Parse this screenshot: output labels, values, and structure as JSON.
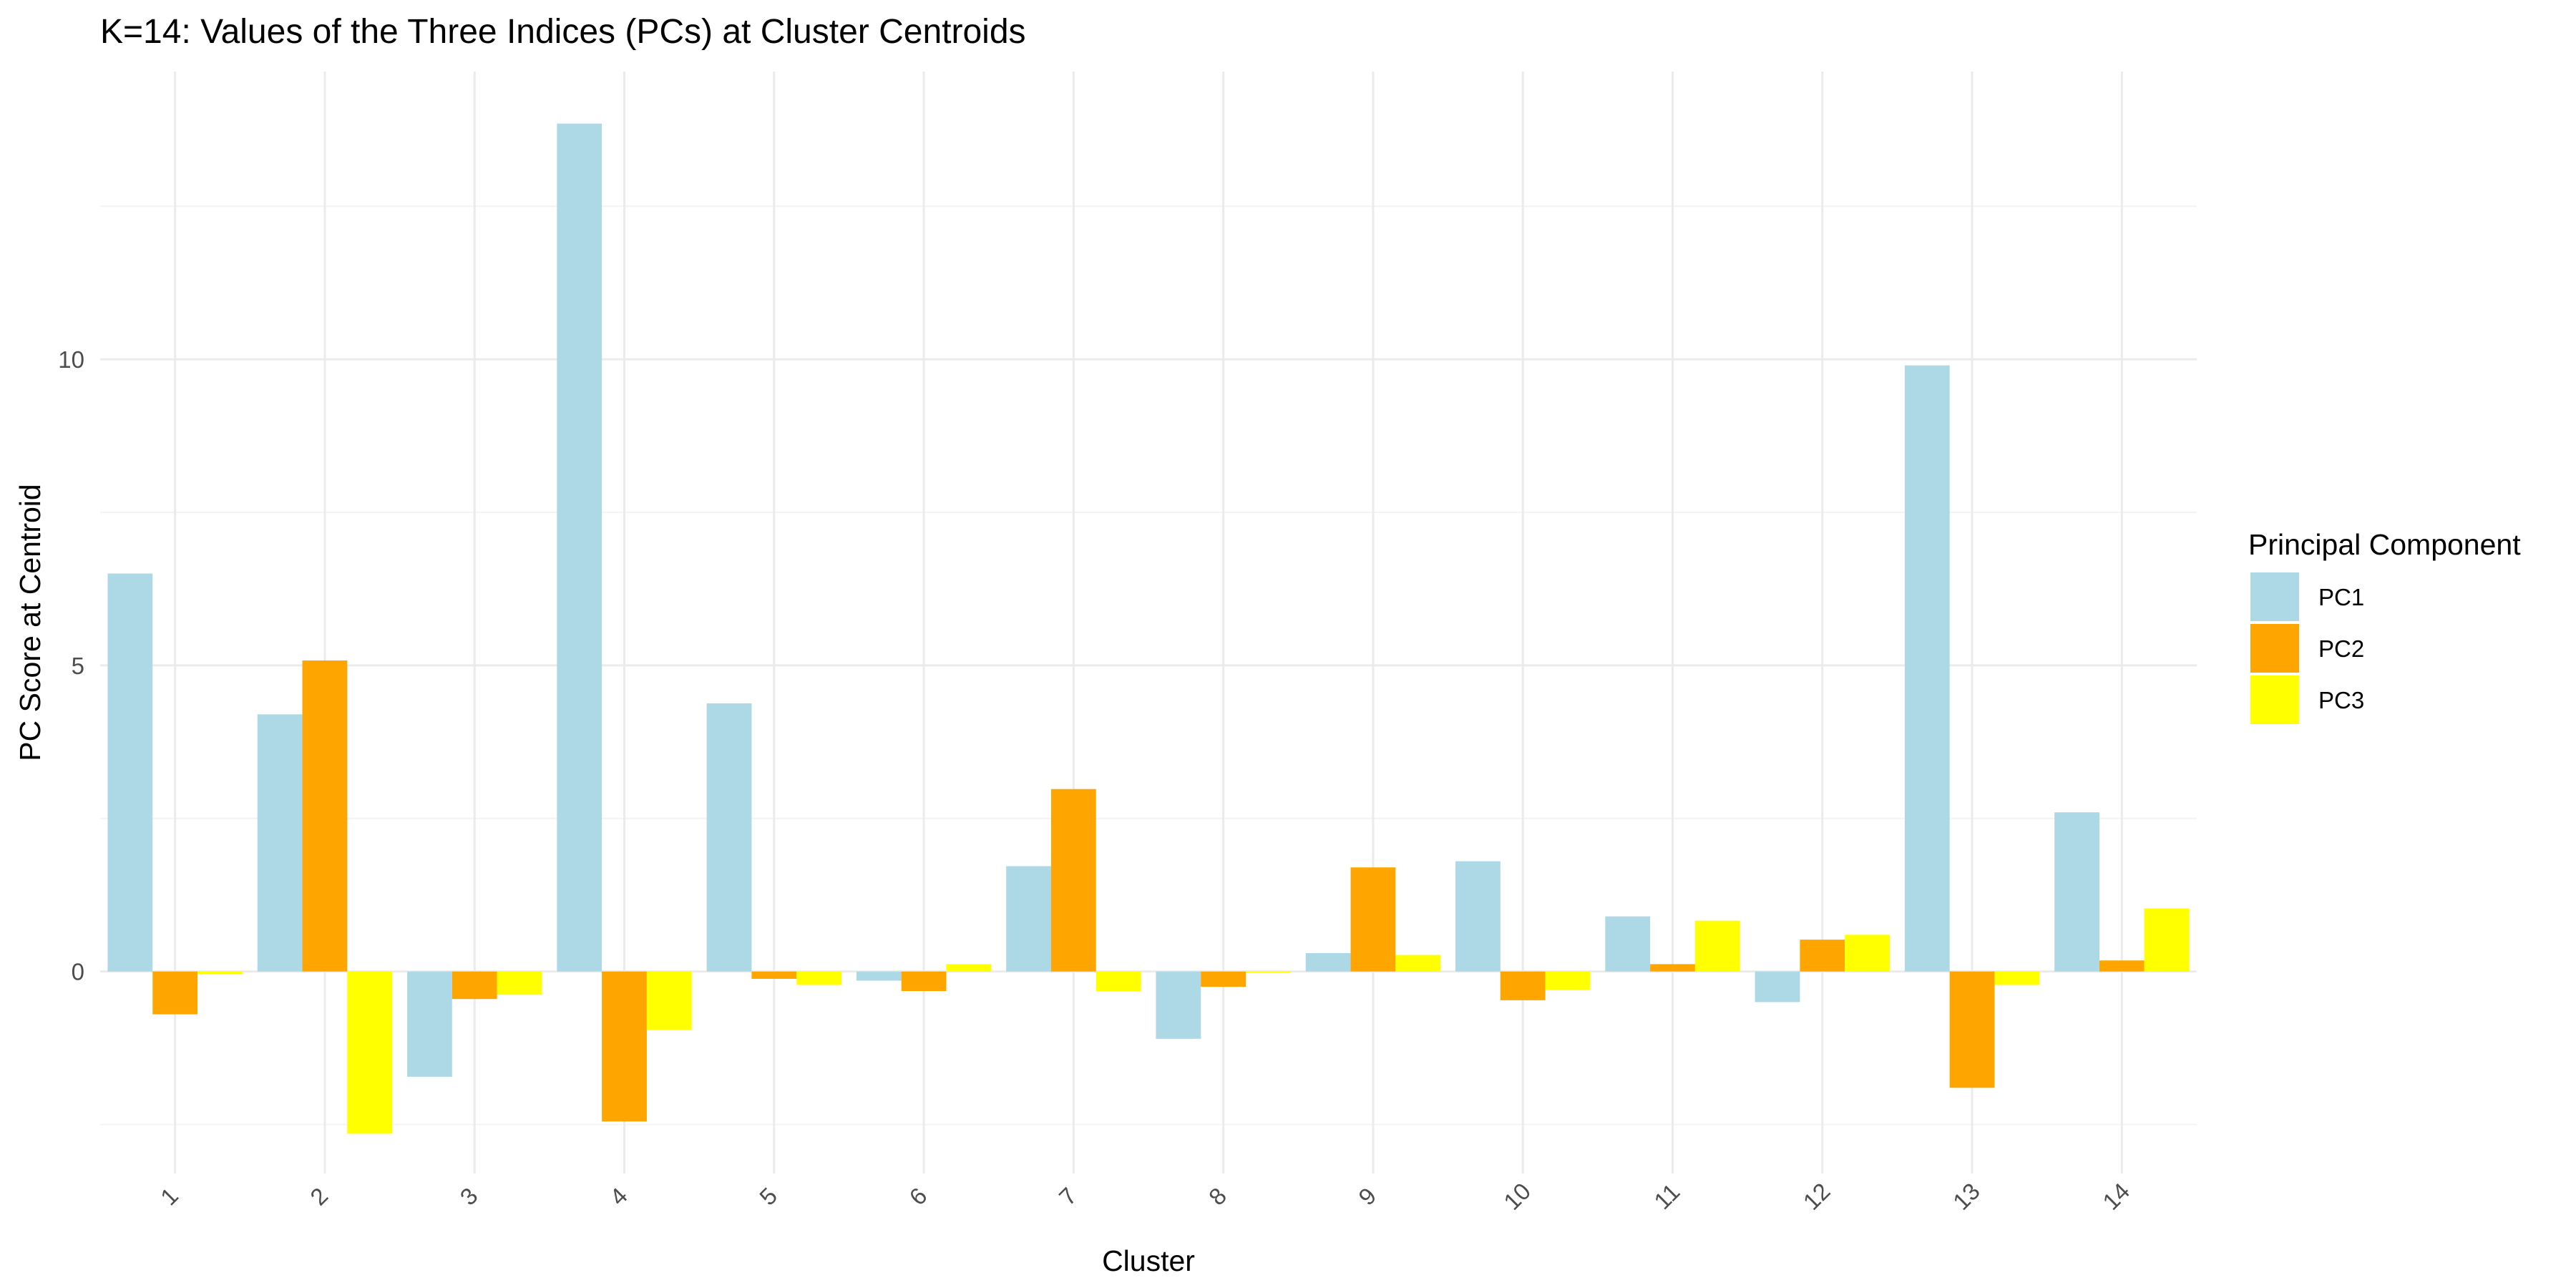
{
  "chart_data": {
    "type": "bar",
    "title": "K=14: Values of the Three Indices (PCs) at Cluster Centroids",
    "xlabel": "Cluster",
    "ylabel": "PC Score at Centroid",
    "categories": [
      "1",
      "2",
      "3",
      "4",
      "5",
      "6",
      "7",
      "8",
      "9",
      "10",
      "11",
      "12",
      "13",
      "14"
    ],
    "series": [
      {
        "name": "PC1",
        "color": "#add8e6",
        "values": [
          6.5,
          4.2,
          -1.72,
          13.85,
          4.38,
          -0.15,
          1.72,
          -1.1,
          0.3,
          1.8,
          0.9,
          -0.5,
          9.9,
          2.6
        ]
      },
      {
        "name": "PC2",
        "color": "#ffa500",
        "values": [
          -0.7,
          5.08,
          -0.45,
          -2.45,
          -0.12,
          -0.32,
          2.98,
          -0.25,
          1.7,
          -0.47,
          0.12,
          0.52,
          -1.9,
          0.18
        ]
      },
      {
        "name": "PC3",
        "color": "#ffff00",
        "values": [
          -0.04,
          -2.65,
          -0.38,
          -0.95,
          -0.22,
          0.12,
          -0.32,
          -0.02,
          0.27,
          -0.3,
          0.83,
          0.6,
          -0.22,
          1.03
        ]
      }
    ],
    "y_ticks": [
      0,
      5,
      10
    ],
    "ylim": [
      -3.3,
      14.7
    ],
    "grid": true,
    "legend": {
      "title": "Principal Component",
      "position": "right"
    }
  }
}
